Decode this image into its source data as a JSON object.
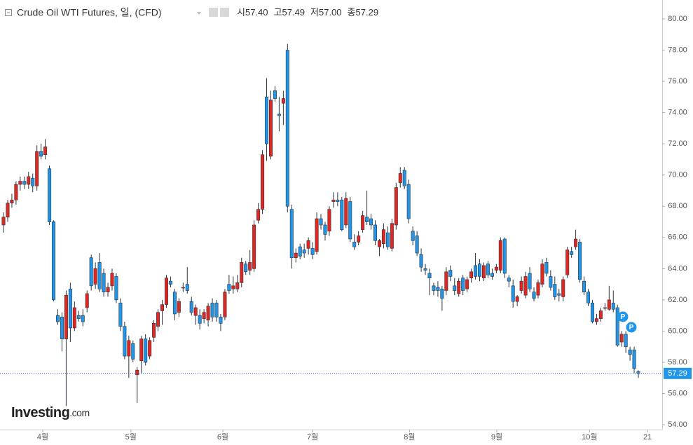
{
  "chart_data": {
    "type": "candlestick",
    "title": "Crude Oil WTI Futures, 일, (CFD)",
    "ohlc_legend": [
      {
        "label": "시",
        "value": "57.40"
      },
      {
        "label": "고",
        "value": "57.49"
      },
      {
        "label": "저",
        "value": "57.00"
      },
      {
        "label": "종",
        "value": "57.29"
      }
    ],
    "up_color": "#e3261f",
    "down_color": "#2196e8",
    "ylim": [
      53.69,
      81.21
    ],
    "yticks": [
      {
        "value": 54,
        "label": "54.00"
      },
      {
        "value": 56,
        "label": "56.00"
      },
      {
        "value": 58,
        "label": "58.00"
      },
      {
        "value": 60,
        "label": "60.00"
      },
      {
        "value": 62,
        "label": "62.00"
      },
      {
        "value": 64,
        "label": "64.00"
      },
      {
        "value": 66,
        "label": "66.00"
      },
      {
        "value": 68,
        "label": "68.00"
      },
      {
        "value": 70,
        "label": "70.00"
      },
      {
        "value": 72,
        "label": "72.00"
      },
      {
        "value": 74,
        "label": "74.00"
      },
      {
        "value": 76,
        "label": "76.00"
      },
      {
        "value": 78,
        "label": "78.00"
      },
      {
        "value": 80,
        "label": "80.00"
      }
    ],
    "xlim": [
      -0.84,
      157.7
    ],
    "xticks": [
      {
        "value": 9.4,
        "label": "4월"
      },
      {
        "value": 30.5,
        "label": "5월"
      },
      {
        "value": 52.5,
        "label": "6월"
      },
      {
        "value": 74.0,
        "label": "7월"
      },
      {
        "value": 97.2,
        "label": "8월"
      },
      {
        "value": 118.1,
        "label": "9월"
      },
      {
        "value": 140.3,
        "label": "10월"
      },
      {
        "value": 154.2,
        "label": "21"
      }
    ],
    "last_price": {
      "value": 57.29,
      "label": "57.29"
    },
    "events": [
      {
        "label": "P"
      },
      {
        "label": "P"
      }
    ],
    "logo": "Investing",
    "logo_suffix": ".com",
    "ohlc": [
      [
        66.8,
        67.6,
        66.3,
        67.3
      ],
      [
        67.3,
        68.4,
        67.0,
        68.2
      ],
      [
        68.2,
        68.8,
        67.9,
        68.4
      ],
      [
        68.4,
        69.6,
        68.1,
        69.4
      ],
      [
        69.4,
        69.9,
        69.0,
        69.6
      ],
      [
        69.6,
        69.9,
        69.1,
        69.4
      ],
      [
        69.4,
        70.2,
        69.1,
        69.9
      ],
      [
        69.8,
        70.1,
        68.9,
        69.3
      ],
      [
        69.3,
        71.9,
        69.0,
        71.5
      ],
      [
        71.5,
        72.0,
        71.0,
        71.2
      ],
      [
        71.3,
        72.3,
        71.0,
        71.8
      ],
      [
        70.4,
        70.6,
        66.8,
        67.0
      ],
      [
        67.0,
        67.1,
        61.9,
        62.0
      ],
      [
        61.0,
        61.4,
        60.4,
        60.6
      ],
      [
        60.9,
        61.2,
        58.7,
        59.5
      ],
      [
        59.5,
        62.6,
        55.2,
        62.3
      ],
      [
        62.7,
        63.1,
        59.3,
        60.2
      ],
      [
        60.2,
        61.9,
        60.0,
        61.5
      ],
      [
        61.0,
        61.3,
        60.6,
        60.8
      ],
      [
        61.0,
        61.4,
        60.3,
        60.6
      ],
      [
        61.5,
        62.6,
        61.2,
        62.4
      ],
      [
        64.7,
        64.9,
        62.6,
        62.9
      ],
      [
        63.0,
        64.4,
        62.7,
        64.0
      ],
      [
        64.4,
        65.0,
        62.5,
        62.7
      ],
      [
        63.7,
        64.0,
        62.2,
        62.5
      ],
      [
        62.5,
        63.1,
        62.2,
        62.8
      ],
      [
        62.9,
        64.0,
        62.6,
        63.7
      ],
      [
        63.5,
        63.7,
        61.8,
        62.0
      ],
      [
        61.8,
        62.1,
        60.0,
        60.3
      ],
      [
        60.3,
        60.6,
        58.2,
        58.4
      ],
      [
        58.4,
        59.7,
        57.0,
        59.4
      ],
      [
        59.2,
        59.4,
        58.0,
        58.2
      ],
      [
        57.2,
        57.7,
        55.4,
        57.5
      ],
      [
        58.1,
        59.7,
        57.3,
        59.5
      ],
      [
        59.5,
        59.8,
        57.8,
        58.0
      ],
      [
        58.4,
        59.6,
        58.2,
        59.4
      ],
      [
        59.6,
        60.7,
        59.3,
        60.5
      ],
      [
        60.3,
        61.4,
        60.0,
        61.2
      ],
      [
        61.3,
        62.0,
        60.4,
        61.7
      ],
      [
        61.7,
        63.6,
        61.5,
        63.4
      ],
      [
        63.2,
        63.5,
        62.8,
        63.0
      ],
      [
        62.5,
        62.7,
        60.7,
        61.1
      ],
      [
        61.2,
        62.1,
        60.9,
        61.9
      ],
      [
        62.8,
        63.1,
        62.5,
        62.8
      ],
      [
        63.0,
        64.1,
        62.4,
        62.6
      ],
      [
        61.9,
        62.2,
        61.0,
        61.2
      ],
      [
        61.0,
        61.7,
        60.4,
        61.5
      ],
      [
        61.0,
        61.4,
        60.1,
        60.5
      ],
      [
        60.8,
        61.4,
        60.5,
        61.2
      ],
      [
        60.7,
        61.8,
        60.3,
        61.6
      ],
      [
        61.8,
        62.1,
        60.6,
        60.9
      ],
      [
        61.8,
        62.0,
        60.6,
        60.9
      ],
      [
        60.9,
        61.1,
        60.0,
        60.5
      ],
      [
        60.9,
        62.7,
        60.7,
        62.5
      ],
      [
        63.0,
        63.6,
        62.4,
        62.6
      ],
      [
        62.7,
        63.5,
        62.4,
        62.9
      ],
      [
        62.7,
        63.6,
        62.5,
        63.1
      ],
      [
        63.1,
        64.7,
        62.8,
        64.4
      ],
      [
        64.3,
        64.5,
        63.6,
        63.8
      ],
      [
        63.9,
        65.2,
        63.6,
        64.4
      ],
      [
        64.0,
        67.1,
        63.8,
        66.8
      ],
      [
        67.1,
        68.2,
        66.9,
        67.8
      ],
      [
        67.8,
        71.6,
        67.5,
        71.3
      ],
      [
        75.0,
        76.2,
        70.9,
        72.0
      ],
      [
        71.2,
        75.4,
        71.0,
        74.8
      ],
      [
        75.4,
        75.7,
        74.7,
        74.9
      ],
      [
        73.9,
        75.0,
        72.8,
        73.8
      ],
      [
        74.6,
        75.4,
        73.2,
        74.9
      ],
      [
        78.0,
        78.4,
        67.6,
        68.0
      ],
      [
        67.8,
        68.1,
        64.0,
        64.7
      ],
      [
        64.7,
        65.3,
        64.4,
        65.0
      ],
      [
        65.4,
        65.6,
        64.6,
        64.8
      ],
      [
        65.2,
        65.6,
        64.7,
        65.0
      ],
      [
        65.3,
        66.0,
        64.9,
        65.8
      ],
      [
        65.3,
        65.7,
        64.6,
        64.9
      ],
      [
        65.1,
        67.6,
        64.9,
        67.2
      ],
      [
        67.2,
        67.5,
        66.5,
        66.8
      ],
      [
        66.8,
        67.0,
        65.8,
        66.2
      ],
      [
        66.4,
        68.0,
        66.1,
        67.8
      ],
      [
        68.3,
        68.9,
        67.9,
        68.4
      ],
      [
        68.4,
        68.9,
        68.0,
        68.3
      ],
      [
        68.4,
        68.6,
        66.4,
        66.5
      ],
      [
        66.8,
        68.9,
        66.6,
        68.5
      ],
      [
        68.3,
        68.6,
        65.7,
        65.9
      ],
      [
        65.7,
        66.2,
        65.2,
        65.4
      ],
      [
        65.7,
        66.4,
        65.5,
        66.1
      ],
      [
        66.5,
        67.7,
        66.3,
        67.4
      ],
      [
        67.3,
        69.0,
        66.8,
        67.0
      ],
      [
        67.2,
        67.5,
        66.5,
        66.8
      ],
      [
        66.8,
        67.1,
        65.5,
        65.8
      ],
      [
        65.4,
        65.9,
        64.8,
        65.8
      ],
      [
        65.6,
        66.9,
        65.3,
        66.5
      ],
      [
        66.3,
        66.7,
        65.2,
        65.4
      ],
      [
        65.3,
        67.2,
        65.1,
        66.9
      ],
      [
        66.8,
        69.5,
        66.5,
        69.2
      ],
      [
        69.5,
        70.5,
        69.2,
        70.1
      ],
      [
        70.3,
        70.5,
        69.1,
        69.3
      ],
      [
        69.4,
        69.7,
        66.9,
        67.2
      ],
      [
        66.4,
        66.7,
        65.5,
        65.8
      ],
      [
        66.1,
        66.4,
        64.8,
        65.0
      ],
      [
        64.9,
        65.3,
        63.8,
        64.1
      ],
      [
        64.0,
        64.3,
        63.6,
        63.9
      ],
      [
        63.7,
        64.0,
        62.3,
        63.4
      ],
      [
        62.9,
        63.1,
        62.3,
        62.6
      ],
      [
        62.8,
        63.2,
        62.2,
        62.6
      ],
      [
        62.7,
        62.9,
        61.3,
        62.1
      ],
      [
        62.6,
        64.1,
        62.3,
        63.8
      ],
      [
        63.9,
        64.2,
        63.2,
        63.5
      ],
      [
        62.9,
        63.4,
        62.3,
        62.6
      ],
      [
        62.4,
        63.4,
        62.2,
        63.2
      ],
      [
        63.4,
        63.6,
        62.3,
        62.6
      ],
      [
        62.7,
        63.5,
        62.5,
        63.3
      ],
      [
        63.4,
        64.0,
        63.1,
        63.8
      ],
      [
        64.2,
        65.0,
        63.3,
        63.5
      ],
      [
        64.3,
        64.6,
        63.2,
        63.5
      ],
      [
        63.4,
        64.4,
        63.2,
        64.2
      ],
      [
        64.3,
        64.5,
        63.4,
        63.6
      ],
      [
        63.7,
        64.0,
        63.3,
        63.5
      ],
      [
        63.9,
        64.3,
        63.7,
        64.1
      ],
      [
        63.9,
        66.0,
        63.7,
        65.8
      ],
      [
        65.9,
        66.0,
        63.4,
        63.7
      ],
      [
        63.4,
        63.6,
        62.8,
        63.2
      ],
      [
        62.9,
        63.3,
        61.5,
        61.9
      ],
      [
        61.9,
        62.3,
        61.6,
        62.2
      ],
      [
        62.6,
        63.5,
        62.4,
        63.2
      ],
      [
        62.3,
        63.8,
        62.1,
        63.5
      ],
      [
        63.7,
        64.1,
        62.5,
        62.7
      ],
      [
        62.5,
        62.8,
        61.9,
        62.1
      ],
      [
        62.3,
        63.3,
        62.1,
        63.1
      ],
      [
        63.0,
        64.6,
        62.8,
        64.3
      ],
      [
        64.4,
        64.7,
        63.5,
        63.7
      ],
      [
        63.5,
        63.9,
        62.6,
        62.8
      ],
      [
        63.0,
        63.5,
        62.0,
        62.2
      ],
      [
        62.4,
        62.7,
        61.9,
        62.3
      ],
      [
        62.2,
        63.5,
        61.9,
        63.3
      ],
      [
        63.6,
        65.4,
        63.4,
        65.2
      ],
      [
        65.1,
        65.4,
        64.7,
        64.9
      ],
      [
        65.4,
        66.5,
        65.2,
        65.9
      ],
      [
        65.7,
        65.9,
        63.1,
        63.3
      ],
      [
        63.2,
        63.5,
        62.3,
        62.5
      ],
      [
        62.5,
        62.7,
        61.6,
        61.8
      ],
      [
        61.8,
        62.0,
        60.5,
        60.6
      ],
      [
        60.6,
        61.1,
        60.4,
        60.8
      ],
      [
        60.8,
        61.5,
        60.6,
        61.3
      ],
      [
        61.5,
        61.8,
        61.3,
        61.5
      ],
      [
        61.4,
        62.9,
        61.3,
        62.0
      ],
      [
        61.8,
        62.6,
        61.2,
        61.4
      ],
      [
        61.5,
        61.7,
        59.0,
        59.1
      ],
      [
        59.3,
        60.0,
        59.0,
        59.8
      ],
      [
        59.8,
        60.0,
        58.6,
        59.0
      ],
      [
        58.8,
        59.0,
        58.1,
        58.5
      ],
      [
        58.8,
        59.0,
        57.3,
        57.6
      ],
      [
        57.4,
        57.49,
        57.0,
        57.29
      ]
    ]
  }
}
